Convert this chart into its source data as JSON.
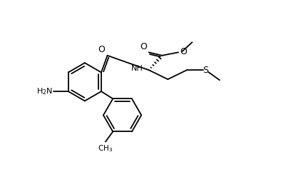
{
  "bg_color": "#ffffff",
  "line_color": "#000000",
  "lw": 1.3,
  "figsize": [
    4.08,
    2.48
  ],
  "dpi": 100,
  "xlim": [
    -0.5,
    10.5
  ],
  "ylim": [
    -0.2,
    6.5
  ]
}
